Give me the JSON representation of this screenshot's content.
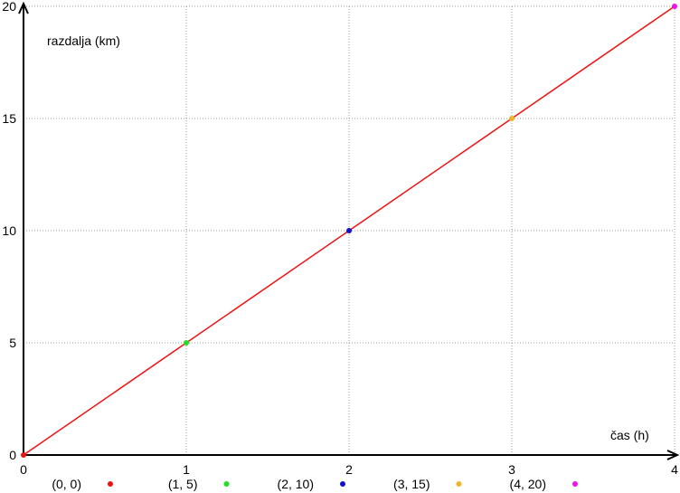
{
  "chart_data": {
    "type": "scatter",
    "title": "",
    "xlabel": "čas (h)",
    "ylabel": "razdalja (km)",
    "xlim": [
      0,
      4
    ],
    "ylim": [
      0,
      20
    ],
    "grid": true,
    "xticks": [
      0,
      1,
      2,
      3,
      4
    ],
    "yticks": [
      0,
      5,
      10,
      15,
      20
    ],
    "line": {
      "x": [
        0,
        4
      ],
      "y": [
        0,
        20
      ],
      "color": "#ee1111"
    },
    "points": [
      {
        "x": 0,
        "y": 0,
        "label": "(0, 0)",
        "color": "#ee1111"
      },
      {
        "x": 1,
        "y": 5,
        "label": "(1, 5)",
        "color": "#22dd22"
      },
      {
        "x": 2,
        "y": 10,
        "label": "(2, 10)",
        "color": "#1111cc"
      },
      {
        "x": 3,
        "y": 15,
        "label": "(3, 15)",
        "color": "#f0b429"
      },
      {
        "x": 4,
        "y": 20,
        "label": "(4, 20)",
        "color": "#ee11ee"
      }
    ],
    "legend_placement": "bottom"
  }
}
